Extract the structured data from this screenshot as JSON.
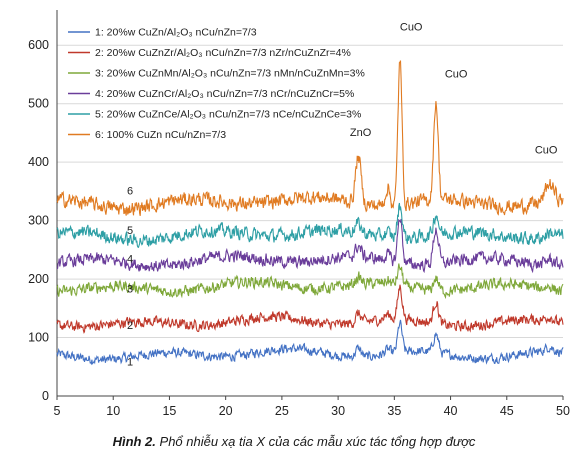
{
  "chart_data": {
    "type": "line",
    "title": "",
    "xlabel": "",
    "ylabel": "",
    "xlim": [
      5,
      50
    ],
    "ylim": [
      0,
      650
    ],
    "x_ticks": [
      "5",
      "10",
      "15",
      "20",
      "25",
      "30",
      "35",
      "40",
      "45",
      "50"
    ],
    "y_ticks": [
      "0",
      "100",
      "200",
      "300",
      "400",
      "500",
      "600"
    ],
    "grid": true,
    "legend_position": "top-left",
    "series": [
      {
        "name": "1: 20%w CuZn/Al₂O₃ nCu/nZn=7/3",
        "color": "#4472c4",
        "label": "1",
        "baseline": 70,
        "peaks": [
          {
            "x": 31.8,
            "h": 15,
            "w": 0.35
          },
          {
            "x": 34.4,
            "h": 8,
            "w": 0.35
          },
          {
            "x": 35.5,
            "h": 50,
            "w": 0.28
          },
          {
            "x": 38.7,
            "h": 32,
            "w": 0.32
          },
          {
            "x": 48.8,
            "h": 8,
            "w": 0.5
          }
        ]
      },
      {
        "name": "2: 20%w CuZnZr/Al₂O₃ nCu/nZn=7/3 nZr/nCuZnZr=4%",
        "color": "#c0392b",
        "label": "2",
        "baseline": 125,
        "peaks": [
          {
            "x": 31.8,
            "h": 15,
            "w": 0.35
          },
          {
            "x": 34.4,
            "h": 8,
            "w": 0.35
          },
          {
            "x": 35.5,
            "h": 55,
            "w": 0.28
          },
          {
            "x": 38.7,
            "h": 38,
            "w": 0.32
          },
          {
            "x": 48.8,
            "h": 8,
            "w": 0.5
          }
        ]
      },
      {
        "name": "3: 20%w CuZnMn/Al₂O₃ nCu/nZn=7/3 nMn/nCuZnMn=3%",
        "color": "#7fa83a",
        "label": "3",
        "baseline": 185,
        "peaks": [
          {
            "x": 31.8,
            "h": 12,
            "w": 0.35
          },
          {
            "x": 34.4,
            "h": 6,
            "w": 0.35
          },
          {
            "x": 35.5,
            "h": 32,
            "w": 0.3
          },
          {
            "x": 38.7,
            "h": 22,
            "w": 0.32
          },
          {
            "x": 48.8,
            "h": 6,
            "w": 0.5
          }
        ]
      },
      {
        "name": "4: 20%w CuZnCr/Al₂O₃ nCu/nZn=7/3 nCr/nCuZnCr=5%",
        "color": "#6a3d9a",
        "label": "4",
        "baseline": 230,
        "peaks": [
          {
            "x": 31.8,
            "h": 18,
            "w": 0.35
          },
          {
            "x": 34.4,
            "h": 10,
            "w": 0.35
          },
          {
            "x": 35.5,
            "h": 80,
            "w": 0.28
          },
          {
            "x": 38.7,
            "h": 60,
            "w": 0.32
          },
          {
            "x": 48.8,
            "h": 10,
            "w": 0.5
          }
        ]
      },
      {
        "name": "5: 20%w CuZnCe/Al₂O₃ nCu/nZn=7/3 nCe/nCuZnCe=3%",
        "color": "#2e9fa5",
        "label": "5",
        "baseline": 275,
        "peaks": [
          {
            "x": 31.8,
            "h": 14,
            "w": 0.35
          },
          {
            "x": 34.4,
            "h": 8,
            "w": 0.35
          },
          {
            "x": 35.5,
            "h": 55,
            "w": 0.3
          },
          {
            "x": 38.7,
            "h": 35,
            "w": 0.32
          },
          {
            "x": 48.8,
            "h": 8,
            "w": 0.5
          }
        ]
      },
      {
        "name": "6: 100% CuZn nCu/nZn=7/3",
        "color": "#e07b22",
        "label": "6",
        "baseline": 330,
        "peaks": [
          {
            "x": 31.8,
            "h": 80,
            "w": 0.35
          },
          {
            "x": 34.4,
            "h": 30,
            "w": 0.3
          },
          {
            "x": 35.5,
            "h": 250,
            "w": 0.25
          },
          {
            "x": 38.7,
            "h": 170,
            "w": 0.28
          },
          {
            "x": 48.8,
            "h": 30,
            "w": 0.55
          }
        ]
      }
    ],
    "annotations": [
      {
        "text": "ZnO",
        "x": 32,
        "y": 445
      },
      {
        "text": "CuO",
        "x": 36.5,
        "y": 625
      },
      {
        "text": "CuO",
        "x": 40.5,
        "y": 545
      },
      {
        "text": "CuO",
        "x": 48.5,
        "y": 415
      }
    ],
    "curve_labels": [
      {
        "text": "6",
        "x": 11.5,
        "y": 345
      },
      {
        "text": "5",
        "x": 11.5,
        "y": 277
      },
      {
        "text": "4",
        "x": 11.5,
        "y": 228
      },
      {
        "text": "3",
        "x": 11.5,
        "y": 177
      },
      {
        "text": "2",
        "x": 11.5,
        "y": 115
      },
      {
        "text": "1",
        "x": 11.5,
        "y": 52
      }
    ]
  },
  "caption": {
    "label": "Hình 2.",
    "text": " Phổ nhiễu xạ tia X của các mẫu xúc tác tổng hợp được"
  }
}
